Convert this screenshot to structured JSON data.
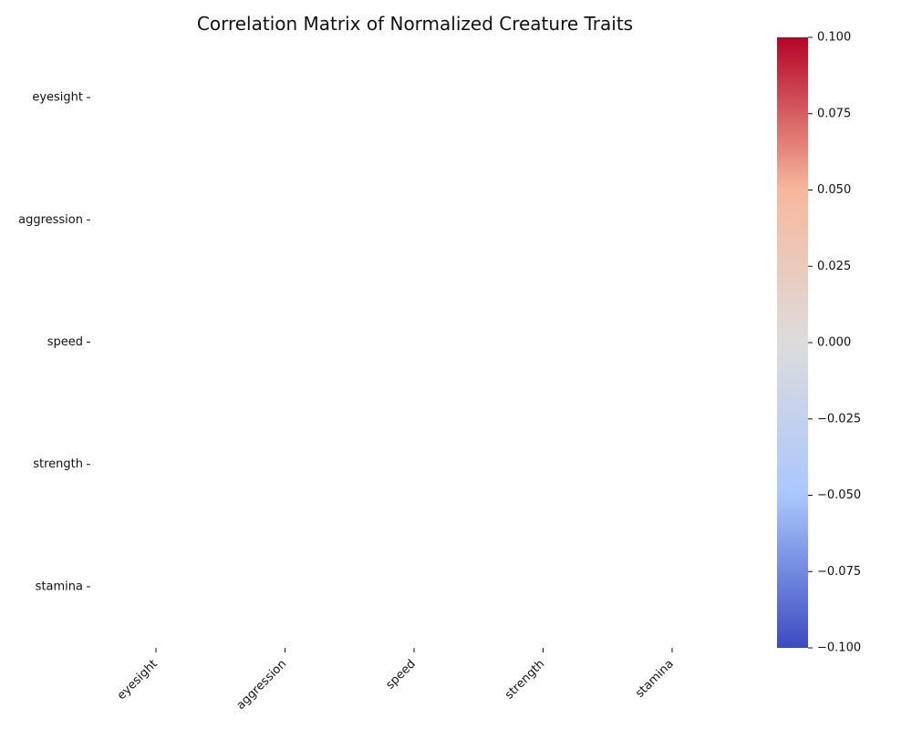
{
  "chart_data": {
    "type": "heatmap",
    "title": "Correlation Matrix of Normalized Creature Traits",
    "xlabel": "",
    "ylabel": "",
    "x_categories": [
      "eyesight",
      "aggression",
      "speed",
      "strength",
      "stamina"
    ],
    "y_categories": [
      "eyesight",
      "aggression",
      "speed",
      "strength",
      "stamina"
    ],
    "values": [
      [
        null,
        null,
        null,
        null,
        null
      ],
      [
        null,
        null,
        null,
        null,
        null
      ],
      [
        null,
        null,
        null,
        null,
        null
      ],
      [
        null,
        null,
        null,
        null,
        null
      ],
      [
        null,
        null,
        null,
        null,
        null
      ]
    ],
    "colorbar": {
      "colormap": "coolwarm",
      "vmin": -0.1,
      "vmax": 0.1,
      "ticks": [
        -0.1,
        -0.075,
        -0.05,
        -0.025,
        0.0,
        0.025,
        0.05,
        0.075,
        0.1
      ],
      "tick_labels": [
        "−0.100",
        "−0.075",
        "−0.050",
        "−0.025",
        "0.000",
        "0.025",
        "0.050",
        "0.075",
        "0.100"
      ],
      "colors": {
        "low": "#3b4cc0",
        "mid_low": "#aac7fd",
        "mid": "#dddcdc",
        "mid_high": "#f7b89c",
        "high": "#b40426"
      }
    },
    "grid": false
  }
}
